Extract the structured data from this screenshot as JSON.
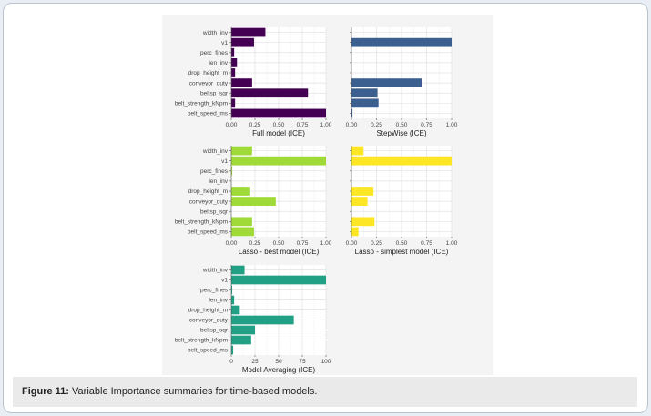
{
  "caption": {
    "label": "Figure 11:",
    "text": " Variable Importance summaries for time-based models."
  },
  "chart_data": [
    {
      "type": "bar",
      "orientation": "horizontal",
      "title": "Full model (ICE)",
      "categories": [
        "width_inv",
        "v1",
        "perc_fines",
        "len_inv",
        "drop_height_m",
        "conveyor_duty",
        "beltsp_sqr",
        "belt_strength_kNpm",
        "belt_speed_ms"
      ],
      "values": [
        0.36,
        0.24,
        0.03,
        0.06,
        0.04,
        0.22,
        0.81,
        0.04,
        1.0
      ],
      "xlim": [
        0,
        1.0
      ],
      "xticks": [
        "0.00",
        "0.25",
        "0.50",
        "0.75",
        "1.00"
      ],
      "color": "#440154",
      "show_y_labels": true,
      "grid": true
    },
    {
      "type": "bar",
      "orientation": "horizontal",
      "title": "StepWise (ICE)",
      "categories": [
        "width_inv",
        "v1",
        "perc_fines",
        "len_inv",
        "drop_height_m",
        "conveyor_duty",
        "beltsp_sqr",
        "belt_strength_kNpm",
        "belt_speed_ms"
      ],
      "values": [
        0,
        1.0,
        0,
        0,
        0,
        0.7,
        0.26,
        0.27,
        0.01
      ],
      "xlim": [
        0,
        1.0
      ],
      "xticks": [
        "0.00",
        "0.25",
        "0.50",
        "0.75",
        "1.00"
      ],
      "color": "#3b5f8f",
      "show_y_labels": false,
      "grid": true
    },
    {
      "type": "bar",
      "orientation": "horizontal",
      "title": "Lasso - best model (ICE)",
      "categories": [
        "width_inv",
        "v1",
        "perc_fines",
        "len_inv",
        "drop_height_m",
        "conveyor_duty",
        "beltsp_sqr",
        "belt_strength_kNpm",
        "belt_speed_ms"
      ],
      "values": [
        0.22,
        1.0,
        0.01,
        0,
        0.2,
        0.47,
        0,
        0.22,
        0.24
      ],
      "xlim": [
        0,
        1.0
      ],
      "xticks": [
        "0.00",
        "0.25",
        "0.50",
        "0.75",
        "1.00"
      ],
      "color": "#a0da39",
      "show_y_labels": true,
      "grid": true
    },
    {
      "type": "bar",
      "orientation": "horizontal",
      "title": "Lasso - simplest model (ICE)",
      "categories": [
        "width_inv",
        "v1",
        "perc_fines",
        "len_inv",
        "drop_height_m",
        "conveyor_duty",
        "beltsp_sqr",
        "belt_strength_kNpm",
        "belt_speed_ms"
      ],
      "values": [
        0.12,
        1.0,
        0,
        0,
        0.22,
        0.16,
        0,
        0.23,
        0.07
      ],
      "xlim": [
        0,
        1.0
      ],
      "xticks": [
        "0.00",
        "0.25",
        "0.50",
        "0.75",
        "1.00"
      ],
      "color": "#fde725",
      "show_y_labels": false,
      "grid": true
    },
    {
      "type": "bar",
      "orientation": "horizontal",
      "title": "Model Averaging (ICE)",
      "categories": [
        "width_inv",
        "v1",
        "perc_fines",
        "len_inv",
        "drop_height_m",
        "conveyor_duty",
        "beltsp_sqr",
        "belt_strength_kNpm",
        "belt_speed_ms"
      ],
      "values": [
        14,
        100,
        1,
        3,
        9,
        66,
        25,
        21,
        2
      ],
      "xlim": [
        0,
        100
      ],
      "xticks": [
        "0",
        "25",
        "50",
        "75",
        "100"
      ],
      "color": "#21a085",
      "show_y_labels": true,
      "grid": true
    }
  ]
}
